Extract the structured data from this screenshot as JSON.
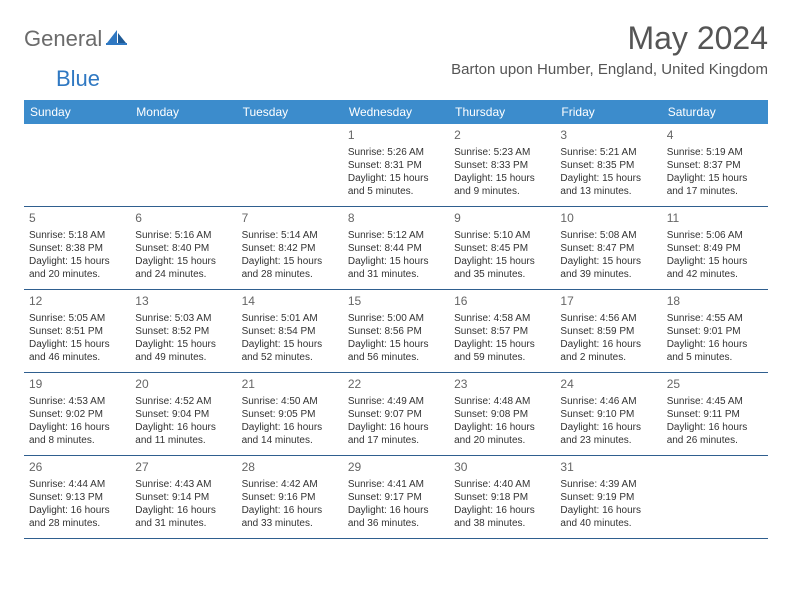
{
  "logo": {
    "part1": "General",
    "part2": "Blue"
  },
  "title": "May 2024",
  "location": "Barton upon Humber, England, United Kingdom",
  "colors": {
    "header_bg": "#3c8ccc",
    "header_text": "#ffffff",
    "row_border": "#2f5f8f",
    "logo_gray": "#6b6b6b",
    "logo_blue": "#2f78c2",
    "title_color": "#555555",
    "text_color": "#333333"
  },
  "dow": [
    "Sunday",
    "Monday",
    "Tuesday",
    "Wednesday",
    "Thursday",
    "Friday",
    "Saturday"
  ],
  "weeks": [
    [
      {
        "n": "",
        "sr": "",
        "ss": "",
        "dl": ""
      },
      {
        "n": "",
        "sr": "",
        "ss": "",
        "dl": ""
      },
      {
        "n": "",
        "sr": "",
        "ss": "",
        "dl": ""
      },
      {
        "n": "1",
        "sr": "5:26 AM",
        "ss": "8:31 PM",
        "dl": "15 hours and 5 minutes."
      },
      {
        "n": "2",
        "sr": "5:23 AM",
        "ss": "8:33 PM",
        "dl": "15 hours and 9 minutes."
      },
      {
        "n": "3",
        "sr": "5:21 AM",
        "ss": "8:35 PM",
        "dl": "15 hours and 13 minutes."
      },
      {
        "n": "4",
        "sr": "5:19 AM",
        "ss": "8:37 PM",
        "dl": "15 hours and 17 minutes."
      }
    ],
    [
      {
        "n": "5",
        "sr": "5:18 AM",
        "ss": "8:38 PM",
        "dl": "15 hours and 20 minutes."
      },
      {
        "n": "6",
        "sr": "5:16 AM",
        "ss": "8:40 PM",
        "dl": "15 hours and 24 minutes."
      },
      {
        "n": "7",
        "sr": "5:14 AM",
        "ss": "8:42 PM",
        "dl": "15 hours and 28 minutes."
      },
      {
        "n": "8",
        "sr": "5:12 AM",
        "ss": "8:44 PM",
        "dl": "15 hours and 31 minutes."
      },
      {
        "n": "9",
        "sr": "5:10 AM",
        "ss": "8:45 PM",
        "dl": "15 hours and 35 minutes."
      },
      {
        "n": "10",
        "sr": "5:08 AM",
        "ss": "8:47 PM",
        "dl": "15 hours and 39 minutes."
      },
      {
        "n": "11",
        "sr": "5:06 AM",
        "ss": "8:49 PM",
        "dl": "15 hours and 42 minutes."
      }
    ],
    [
      {
        "n": "12",
        "sr": "5:05 AM",
        "ss": "8:51 PM",
        "dl": "15 hours and 46 minutes."
      },
      {
        "n": "13",
        "sr": "5:03 AM",
        "ss": "8:52 PM",
        "dl": "15 hours and 49 minutes."
      },
      {
        "n": "14",
        "sr": "5:01 AM",
        "ss": "8:54 PM",
        "dl": "15 hours and 52 minutes."
      },
      {
        "n": "15",
        "sr": "5:00 AM",
        "ss": "8:56 PM",
        "dl": "15 hours and 56 minutes."
      },
      {
        "n": "16",
        "sr": "4:58 AM",
        "ss": "8:57 PM",
        "dl": "15 hours and 59 minutes."
      },
      {
        "n": "17",
        "sr": "4:56 AM",
        "ss": "8:59 PM",
        "dl": "16 hours and 2 minutes."
      },
      {
        "n": "18",
        "sr": "4:55 AM",
        "ss": "9:01 PM",
        "dl": "16 hours and 5 minutes."
      }
    ],
    [
      {
        "n": "19",
        "sr": "4:53 AM",
        "ss": "9:02 PM",
        "dl": "16 hours and 8 minutes."
      },
      {
        "n": "20",
        "sr": "4:52 AM",
        "ss": "9:04 PM",
        "dl": "16 hours and 11 minutes."
      },
      {
        "n": "21",
        "sr": "4:50 AM",
        "ss": "9:05 PM",
        "dl": "16 hours and 14 minutes."
      },
      {
        "n": "22",
        "sr": "4:49 AM",
        "ss": "9:07 PM",
        "dl": "16 hours and 17 minutes."
      },
      {
        "n": "23",
        "sr": "4:48 AM",
        "ss": "9:08 PM",
        "dl": "16 hours and 20 minutes."
      },
      {
        "n": "24",
        "sr": "4:46 AM",
        "ss": "9:10 PM",
        "dl": "16 hours and 23 minutes."
      },
      {
        "n": "25",
        "sr": "4:45 AM",
        "ss": "9:11 PM",
        "dl": "16 hours and 26 minutes."
      }
    ],
    [
      {
        "n": "26",
        "sr": "4:44 AM",
        "ss": "9:13 PM",
        "dl": "16 hours and 28 minutes."
      },
      {
        "n": "27",
        "sr": "4:43 AM",
        "ss": "9:14 PM",
        "dl": "16 hours and 31 minutes."
      },
      {
        "n": "28",
        "sr": "4:42 AM",
        "ss": "9:16 PM",
        "dl": "16 hours and 33 minutes."
      },
      {
        "n": "29",
        "sr": "4:41 AM",
        "ss": "9:17 PM",
        "dl": "16 hours and 36 minutes."
      },
      {
        "n": "30",
        "sr": "4:40 AM",
        "ss": "9:18 PM",
        "dl": "16 hours and 38 minutes."
      },
      {
        "n": "31",
        "sr": "4:39 AM",
        "ss": "9:19 PM",
        "dl": "16 hours and 40 minutes."
      },
      {
        "n": "",
        "sr": "",
        "ss": "",
        "dl": ""
      }
    ]
  ],
  "labels": {
    "sunrise": "Sunrise: ",
    "sunset": "Sunset: ",
    "daylight": "Daylight: "
  }
}
